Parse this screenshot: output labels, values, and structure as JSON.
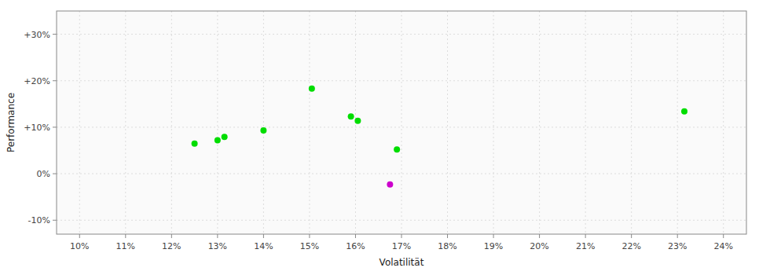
{
  "chart_data": {
    "type": "scatter",
    "xlabel": "Volatilität",
    "ylabel": "Performance",
    "series": [
      {
        "color": "#00dd00",
        "x": [
          12.5,
          13.0,
          13.15,
          14.0,
          15.05,
          15.9,
          16.05,
          16.9,
          23.15
        ],
        "values": [
          6.5,
          7.2,
          7.9,
          9.3,
          18.3,
          12.3,
          11.4,
          5.2,
          13.4
        ]
      },
      {
        "color": "#cc00cc",
        "x": [
          16.75
        ],
        "values": [
          -2.3
        ]
      }
    ],
    "xlim": [
      9.5,
      24.5
    ],
    "ylim": [
      -13,
      35
    ],
    "xticks": [
      {
        "value": 10,
        "label": "10%"
      },
      {
        "value": 11,
        "label": "11%"
      },
      {
        "value": 12,
        "label": "12%"
      },
      {
        "value": 13,
        "label": "13%"
      },
      {
        "value": 14,
        "label": "14%"
      },
      {
        "value": 15,
        "label": "15%"
      },
      {
        "value": 16,
        "label": "16%"
      },
      {
        "value": 17,
        "label": "17%"
      },
      {
        "value": 18,
        "label": "18%"
      },
      {
        "value": 19,
        "label": "19%"
      },
      {
        "value": 20,
        "label": "20%"
      },
      {
        "value": 21,
        "label": "21%"
      },
      {
        "value": 22,
        "label": "22%"
      },
      {
        "value": 23,
        "label": "23%"
      },
      {
        "value": 24,
        "label": "24%"
      }
    ],
    "yticks": [
      {
        "value": -10,
        "label": "-10%"
      },
      {
        "value": 0,
        "label": "0%"
      },
      {
        "value": 10,
        "label": "+10%"
      },
      {
        "value": 20,
        "label": "+20%"
      },
      {
        "value": 30,
        "label": "+30%"
      }
    ],
    "grid": true
  }
}
